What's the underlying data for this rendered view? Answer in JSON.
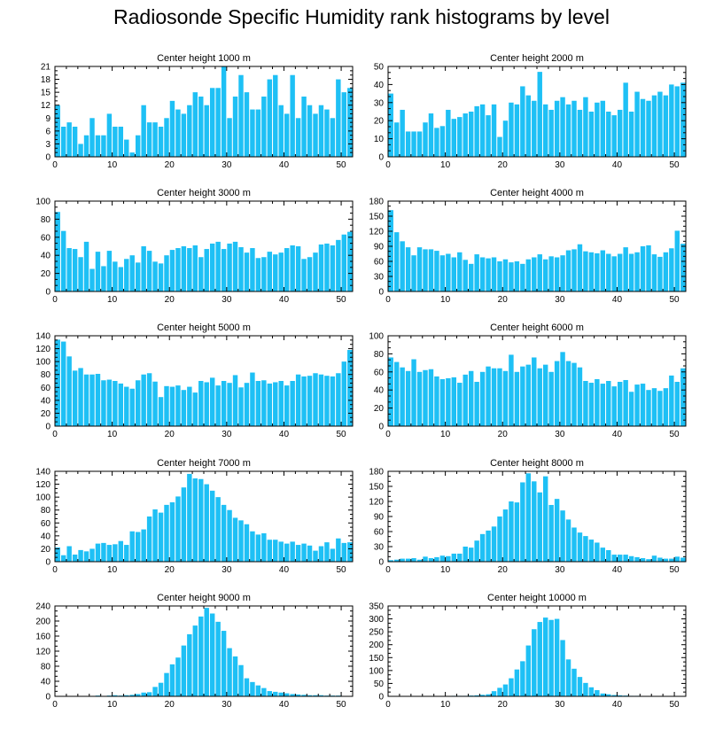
{
  "figure_title": "Radiosonde Specific Humidity rank histograms by level",
  "colors": {
    "bar": "#1ec0f5",
    "axis": "#000000",
    "background": "#ffffff"
  },
  "chart_data": [
    {
      "type": "bar",
      "title": "Center height 1000 m",
      "xlabel": "",
      "ylabel": "",
      "xlim": [
        0,
        52
      ],
      "xticks": [
        0,
        10,
        20,
        30,
        40,
        50
      ],
      "ylim": [
        0,
        21
      ],
      "yticks": [
        0,
        3,
        6,
        9,
        12,
        15,
        18,
        21
      ],
      "values": [
        12,
        7,
        8,
        7,
        3,
        5,
        9,
        5,
        5,
        10,
        7,
        7,
        4,
        1,
        5,
        12,
        8,
        8,
        7,
        9,
        13,
        11,
        10,
        12,
        15,
        14,
        12,
        16,
        16,
        21,
        9,
        14,
        19,
        15,
        11,
        11,
        14,
        18,
        19,
        12,
        10,
        19,
        9,
        14,
        12,
        10,
        12,
        11,
        9,
        18,
        15,
        16
      ]
    },
    {
      "type": "bar",
      "title": "Center height 2000 m",
      "xlabel": "",
      "ylabel": "",
      "xlim": [
        0,
        52
      ],
      "xticks": [
        0,
        10,
        20,
        30,
        40,
        50
      ],
      "ylim": [
        0,
        50
      ],
      "yticks": [
        0,
        10,
        20,
        30,
        40,
        50
      ],
      "values": [
        35,
        19,
        26,
        14,
        14,
        14,
        19,
        24,
        16,
        17,
        26,
        21,
        22,
        24,
        25,
        28,
        29,
        23,
        29,
        11,
        20,
        30,
        29,
        39,
        34,
        31,
        47,
        29,
        26,
        31,
        33,
        29,
        31,
        26,
        33,
        25,
        30,
        31,
        25,
        23,
        26,
        41,
        25,
        36,
        32,
        31,
        34,
        36,
        34,
        40,
        39,
        41
      ]
    },
    {
      "type": "bar",
      "title": "Center height 3000 m",
      "xlabel": "",
      "ylabel": "",
      "xlim": [
        0,
        52
      ],
      "xticks": [
        0,
        10,
        20,
        30,
        40,
        50
      ],
      "ylim": [
        0,
        100
      ],
      "yticks": [
        0,
        20,
        40,
        60,
        80,
        100
      ],
      "values": [
        88,
        67,
        48,
        47,
        38,
        55,
        25,
        44,
        28,
        45,
        33,
        27,
        36,
        40,
        32,
        50,
        45,
        33,
        31,
        40,
        46,
        48,
        50,
        48,
        51,
        38,
        47,
        53,
        55,
        47,
        53,
        55,
        49,
        43,
        48,
        37,
        38,
        44,
        41,
        43,
        48,
        51,
        50,
        36,
        38,
        43,
        52,
        53,
        51,
        57,
        63,
        66
      ]
    },
    {
      "type": "bar",
      "title": "Center height 4000 m",
      "xlabel": "",
      "ylabel": "",
      "xlim": [
        0,
        52
      ],
      "xticks": [
        0,
        10,
        20,
        30,
        40,
        50
      ],
      "ylim": [
        0,
        180
      ],
      "yticks": [
        0,
        30,
        60,
        90,
        120,
        150,
        180
      ],
      "values": [
        162,
        118,
        100,
        88,
        72,
        88,
        84,
        84,
        81,
        72,
        75,
        68,
        78,
        63,
        55,
        74,
        68,
        66,
        68,
        60,
        64,
        58,
        60,
        55,
        64,
        68,
        74,
        64,
        70,
        68,
        72,
        82,
        84,
        94,
        80,
        78,
        76,
        82,
        75,
        70,
        75,
        88,
        75,
        78,
        90,
        92,
        74,
        69,
        78,
        86,
        121,
        95
      ]
    },
    {
      "type": "bar",
      "title": "Center height 5000 m",
      "xlabel": "",
      "ylabel": "",
      "xlim": [
        0,
        52
      ],
      "xticks": [
        0,
        10,
        20,
        30,
        40,
        50
      ],
      "ylim": [
        0,
        140
      ],
      "yticks": [
        0,
        20,
        40,
        60,
        80,
        100,
        120,
        140
      ],
      "values": [
        134,
        131,
        108,
        86,
        90,
        80,
        80,
        81,
        71,
        72,
        70,
        66,
        61,
        58,
        71,
        80,
        82,
        69,
        45,
        62,
        61,
        63,
        56,
        61,
        52,
        70,
        68,
        75,
        63,
        70,
        67,
        79,
        60,
        67,
        83,
        70,
        71,
        66,
        68,
        70,
        63,
        70,
        80,
        77,
        78,
        82,
        80,
        78,
        77,
        82,
        100,
        118
      ]
    },
    {
      "type": "bar",
      "title": "Center height 6000 m",
      "xlabel": "",
      "ylabel": "",
      "xlim": [
        0,
        52
      ],
      "xticks": [
        0,
        10,
        20,
        30,
        40,
        50
      ],
      "ylim": [
        0,
        100
      ],
      "yticks": [
        0,
        20,
        40,
        60,
        80,
        100
      ],
      "values": [
        76,
        71,
        65,
        61,
        74,
        60,
        62,
        63,
        55,
        52,
        53,
        54,
        48,
        57,
        61,
        49,
        60,
        66,
        64,
        64,
        61,
        79,
        60,
        66,
        68,
        76,
        64,
        68,
        60,
        72,
        82,
        72,
        70,
        65,
        50,
        48,
        52,
        47,
        50,
        44,
        49,
        51,
        38,
        46,
        47,
        40,
        42,
        39,
        42,
        56,
        49,
        64
      ]
    },
    {
      "type": "bar",
      "title": "Center height 7000 m",
      "xlabel": "",
      "ylabel": "",
      "xlim": [
        0,
        52
      ],
      "xticks": [
        0,
        10,
        20,
        30,
        40,
        50
      ],
      "ylim": [
        0,
        140
      ],
      "yticks": [
        0,
        20,
        40,
        60,
        80,
        100,
        120,
        140
      ],
      "values": [
        22,
        10,
        24,
        11,
        18,
        16,
        20,
        28,
        29,
        26,
        27,
        32,
        26,
        47,
        46,
        50,
        70,
        81,
        76,
        88,
        92,
        101,
        115,
        136,
        129,
        128,
        120,
        110,
        100,
        88,
        80,
        68,
        64,
        58,
        47,
        42,
        44,
        34,
        34,
        31,
        28,
        31,
        26,
        28,
        25,
        17,
        24,
        30,
        20,
        36,
        29,
        30
      ]
    },
    {
      "type": "bar",
      "title": "Center height 8000 m",
      "xlabel": "",
      "ylabel": "",
      "xlim": [
        0,
        52
      ],
      "xticks": [
        0,
        10,
        20,
        30,
        40,
        50
      ],
      "ylim": [
        0,
        180
      ],
      "yticks": [
        0,
        30,
        60,
        90,
        120,
        150,
        180
      ],
      "values": [
        3,
        4,
        6,
        6,
        7,
        4,
        10,
        7,
        9,
        12,
        11,
        16,
        16,
        30,
        28,
        42,
        55,
        62,
        70,
        90,
        104,
        120,
        118,
        158,
        176,
        160,
        138,
        170,
        113,
        125,
        102,
        84,
        68,
        58,
        51,
        44,
        38,
        28,
        23,
        14,
        14,
        14,
        11,
        9,
        7,
        5,
        12,
        8,
        6,
        6,
        10,
        8
      ]
    },
    {
      "type": "bar",
      "title": "Center height 9000 m",
      "xlabel": "",
      "ylabel": "",
      "xlim": [
        0,
        52
      ],
      "xticks": [
        0,
        10,
        20,
        30,
        40,
        50
      ],
      "ylim": [
        0,
        240
      ],
      "yticks": [
        0,
        40,
        80,
        120,
        160,
        200,
        240
      ],
      "values": [
        0,
        1,
        1,
        0,
        1,
        1,
        1,
        2,
        1,
        2,
        3,
        2,
        3,
        4,
        6,
        10,
        11,
        25,
        36,
        62,
        85,
        103,
        135,
        165,
        188,
        212,
        235,
        220,
        198,
        174,
        128,
        106,
        83,
        48,
        38,
        29,
        22,
        14,
        12,
        10,
        8,
        6,
        5,
        4,
        3,
        3,
        3,
        2,
        2,
        2,
        1,
        1
      ]
    },
    {
      "type": "bar",
      "title": "Center height 10000 m",
      "xlabel": "",
      "ylabel": "",
      "xlim": [
        0,
        52
      ],
      "xticks": [
        0,
        10,
        20,
        30,
        40,
        50
      ],
      "ylim": [
        0,
        350
      ],
      "yticks": [
        0,
        50,
        100,
        150,
        200,
        250,
        300,
        350
      ],
      "values": [
        0,
        0,
        0,
        0,
        0,
        0,
        1,
        0,
        1,
        1,
        1,
        2,
        2,
        2,
        3,
        4,
        6,
        8,
        20,
        33,
        46,
        70,
        104,
        136,
        197,
        260,
        288,
        305,
        296,
        300,
        218,
        143,
        107,
        75,
        52,
        35,
        24,
        11,
        8,
        5,
        4,
        3,
        2,
        2,
        1,
        1,
        1,
        1,
        1,
        1,
        1,
        1
      ]
    }
  ]
}
